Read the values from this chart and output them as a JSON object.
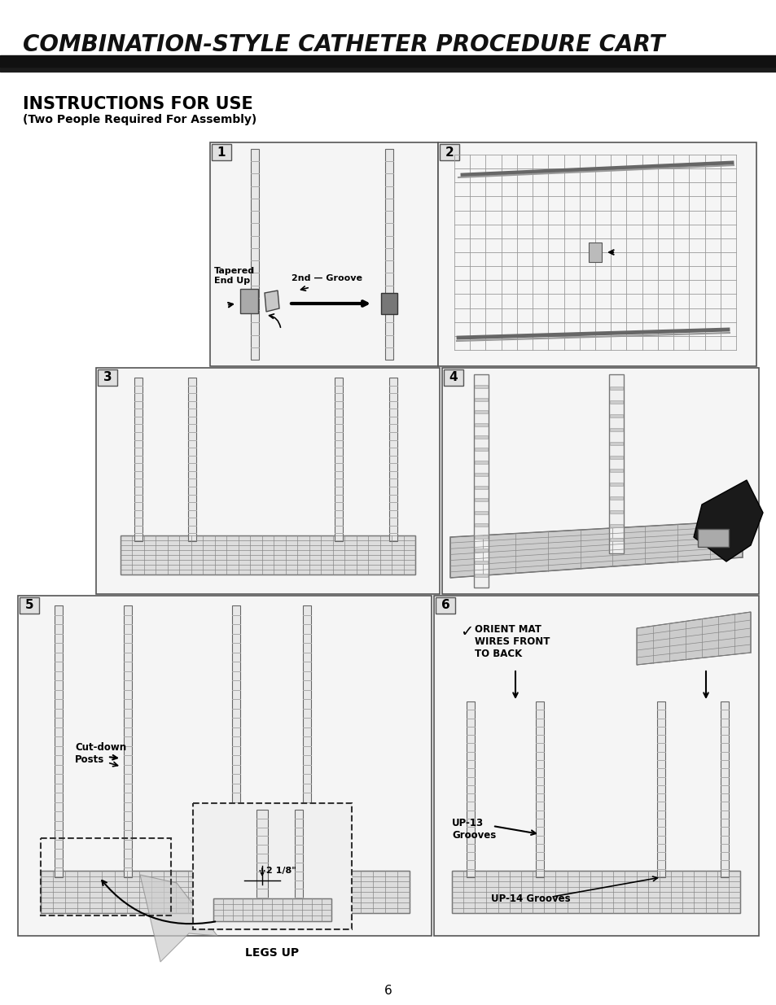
{
  "title": "COMBINATION-STYLE CATHETER PROCEDURE CART",
  "subtitle": "INSTRUCTIONS FOR USE",
  "subtitle2": "(Two People Required For Assembly)",
  "page_number": "6",
  "bg": "#ffffff",
  "title_bg": "#1c1c1c",
  "title_fg": "#ffffff",
  "box_edge": "#555555",
  "post_fill": "#e8e8e8",
  "post_edge": "#666666",
  "groove_color": "#aaaaaa",
  "shelf_fill": "#cccccc",
  "wire_color": "#888888",
  "grid_color": "#aaaaaa",
  "step1_annot": [
    "Tapered\nEnd Up",
    "2nd — Groove"
  ],
  "step5_annot": [
    "Cut-down\nPosts",
    "2 1/8\"",
    "LEGS UP"
  ],
  "step6_annot": [
    "ORIENT MAT\nWIRES FRONT\nTO BACK",
    "UP-13\nGrooves",
    "UP-14 Grooves"
  ]
}
